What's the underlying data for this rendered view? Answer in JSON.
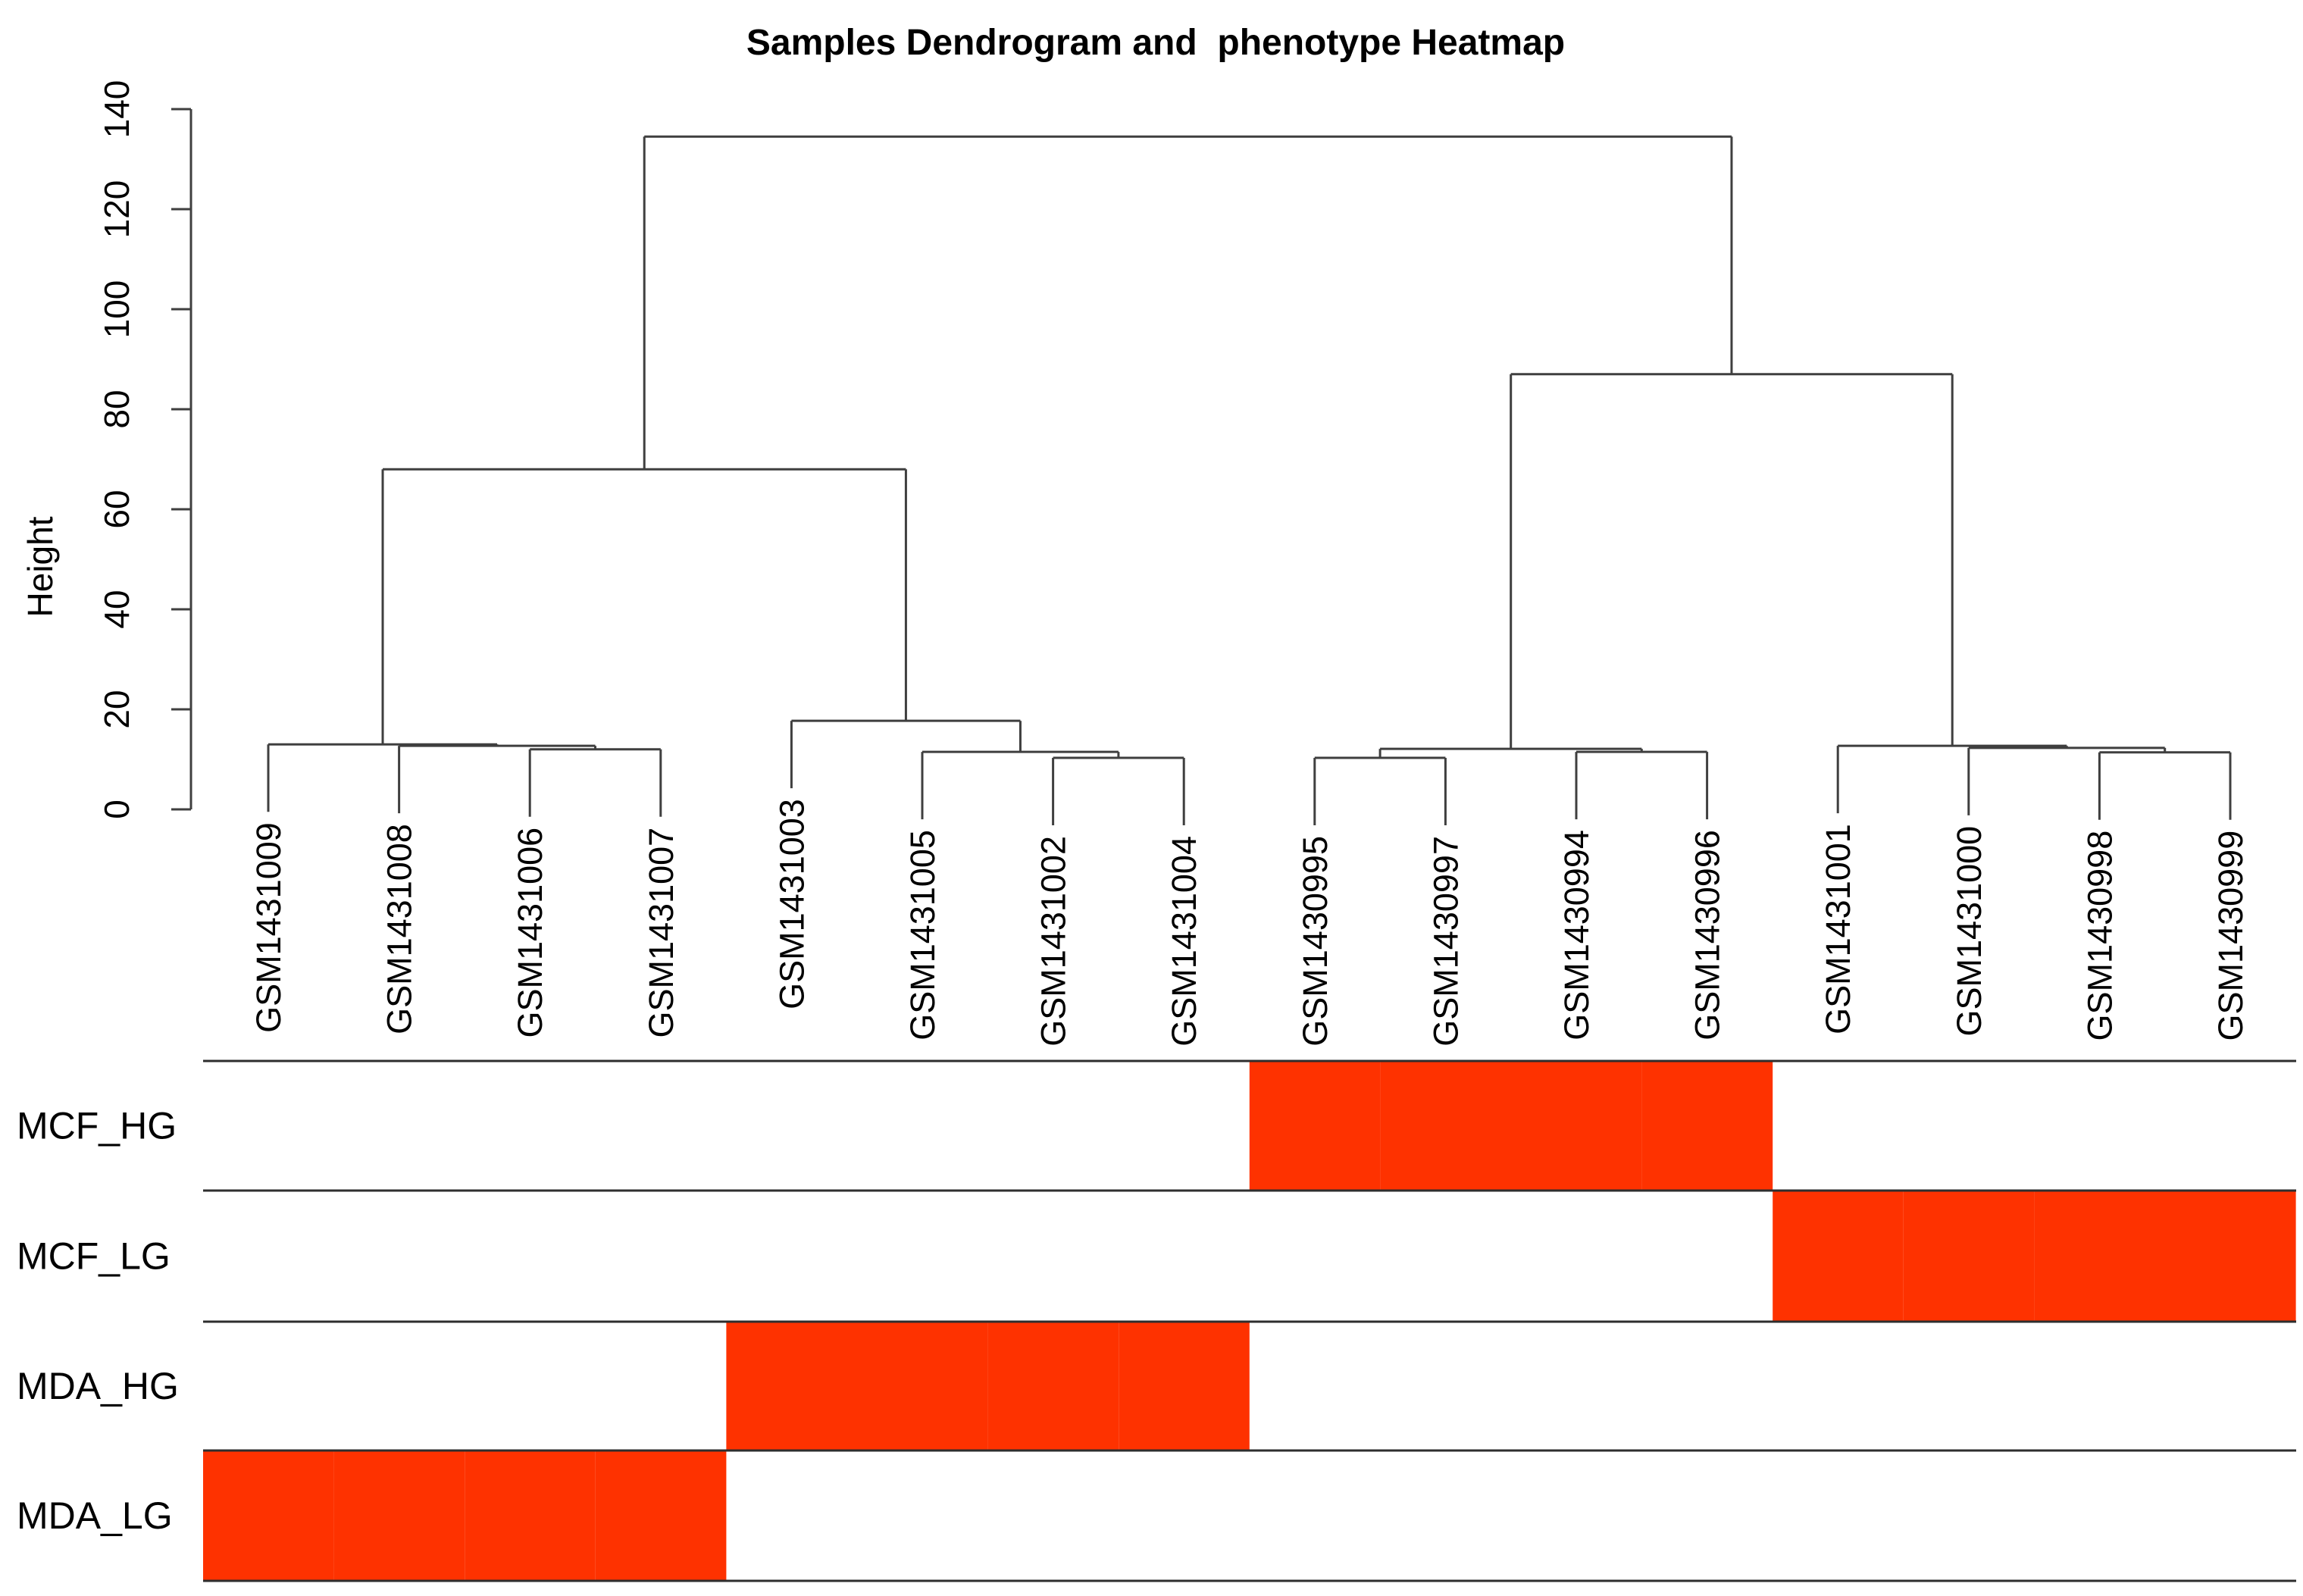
{
  "title": "Samples Dendrogram and  phenotype Heatmap",
  "chart_data": {
    "type": "dendrogram_heatmap",
    "title": "Samples Dendrogram and  phenotype Heatmap",
    "ylabel": "Height",
    "ylim": [
      0,
      140
    ],
    "yticks": [
      0,
      20,
      40,
      60,
      80,
      100,
      120,
      140
    ],
    "grid": false,
    "leaves": [
      "GSM1431009",
      "GSM1431008",
      "GSM1431006",
      "GSM1431007",
      "GSM1431003",
      "GSM1431005",
      "GSM1431002",
      "GSM1431004",
      "GSM1430995",
      "GSM1430997",
      "GSM1430994",
      "GSM1430996",
      "GSM1431001",
      "GSM1431000",
      "GSM1430998",
      "GSM1430999"
    ],
    "merges": [
      {
        "id": "A1",
        "children": [
          3,
          4
        ],
        "height": 12.0
      },
      {
        "id": "A2",
        "children": [
          2,
          "A1"
        ],
        "height": 12.7
      },
      {
        "id": "A3",
        "children": [
          1,
          "A2"
        ],
        "height": 13.0
      },
      {
        "id": "B1",
        "children": [
          7,
          8
        ],
        "height": 10.3
      },
      {
        "id": "B2",
        "children": [
          6,
          "B1"
        ],
        "height": 11.5
      },
      {
        "id": "B3",
        "children": [
          5,
          "B2"
        ],
        "height": 17.7
      },
      {
        "id": "C1",
        "children": [
          9,
          10
        ],
        "height": 10.3
      },
      {
        "id": "C2",
        "children": [
          11,
          12
        ],
        "height": 11.5
      },
      {
        "id": "C3",
        "children": [
          "C1",
          "C2"
        ],
        "height": 12.1
      },
      {
        "id": "D1",
        "children": [
          15,
          16
        ],
        "height": 11.4
      },
      {
        "id": "D2",
        "children": [
          14,
          "D1"
        ],
        "height": 12.3
      },
      {
        "id": "D3",
        "children": [
          13,
          "D2"
        ],
        "height": 12.7
      },
      {
        "id": "L",
        "children": [
          "A3",
          "B3"
        ],
        "height": 68
      },
      {
        "id": "R",
        "children": [
          "C3",
          "D3"
        ],
        "height": 87
      },
      {
        "id": "ROOT",
        "children": [
          "L",
          "R"
        ],
        "height": 134.5
      }
    ],
    "heatmap": {
      "rows": [
        {
          "label": "MCF_HG",
          "active_columns": [
            9,
            10,
            11,
            12
          ]
        },
        {
          "label": "MCF_LG",
          "active_columns": [
            13,
            14,
            15,
            16
          ]
        },
        {
          "label": "MDA_HG",
          "active_columns": [
            5,
            6,
            7,
            8
          ]
        },
        {
          "label": "MDA_LG",
          "active_columns": [
            1,
            2,
            3,
            4
          ]
        }
      ],
      "active_color": "#fe3200",
      "inactive_color": "#ffffff"
    },
    "colors": {
      "dendrogram_line": "#3f3f3f",
      "heatmap_grid_line": "#2e2e2e",
      "text": "#000000",
      "background": "#ffffff"
    }
  }
}
